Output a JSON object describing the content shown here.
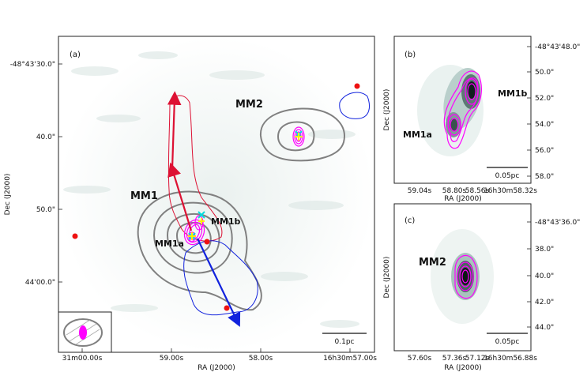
{
  "figure": {
    "panel_a": {
      "label": "(a)",
      "x_ticks": [
        "31m00.00s",
        "59.00s",
        "58.00s",
        "16h30m57.00s"
      ],
      "y_ticks": [
        "-48°43'30.0\"",
        "40.0\"",
        "50.0\"",
        "44'00.0\""
      ],
      "xlabel": "RA (J2000)",
      "ylabel": "Dec (J2000)",
      "sources": [
        "MM1",
        "MM2",
        "MM1a",
        "MM1b"
      ],
      "scalebar": "0.1pc"
    },
    "panel_b": {
      "label": "(b)",
      "x_ticks": [
        "59.04s",
        "58.80s",
        "58.56s",
        "16h30m58.32s"
      ],
      "y_ticks": [
        "-48°43'48.0\"",
        "50.0\"",
        "52.0\"",
        "54.0\"",
        "56.0\"",
        "58.0\""
      ],
      "xlabel": "RA (J2000)",
      "ylabel": "Dec (J2000)",
      "sources": [
        "MM1a",
        "MM1b"
      ],
      "scalebar": "0.05pc"
    },
    "panel_c": {
      "label": "(c)",
      "x_ticks": [
        "57.60s",
        "57.36s",
        "57.12s",
        "16h30m56.88s"
      ],
      "y_ticks": [
        "-48°43'36.0\"",
        "38.0\"",
        "40.0\"",
        "42.0\"",
        "44.0\""
      ],
      "xlabel": "RA (J2000)",
      "ylabel": "Dec (J2000)",
      "sources": [
        "MM2"
      ],
      "scalebar": "0.05pc"
    }
  },
  "colors": {
    "magenta": "#ff00ff",
    "gray": "#808080",
    "red": "#dd1133",
    "blue": "#1122dd",
    "cyan": "#00dddd",
    "yellow": "#ffee00"
  }
}
